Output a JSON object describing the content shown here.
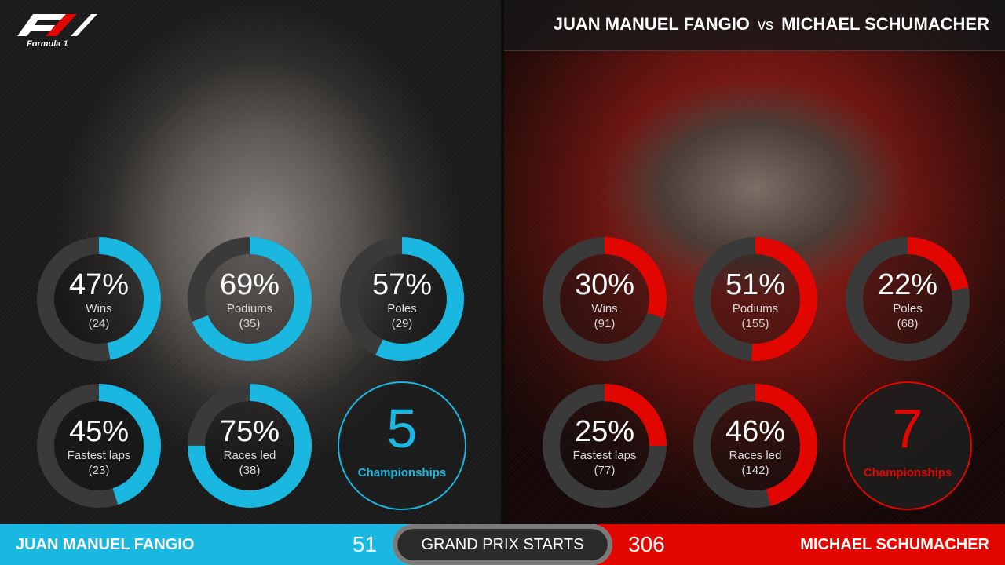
{
  "header": {
    "driver_left": "JUAN MANUEL FANGIO",
    "vs": "vs",
    "driver_right": "MICHAEL SCHUMACHER"
  },
  "logo": {
    "text": "Formula 1"
  },
  "colors": {
    "left_accent": "#1ab8e0",
    "right_accent": "#e10600",
    "track": "#3a3a3a"
  },
  "chart_data": [
    {
      "type": "donut",
      "driver": "JUAN MANUEL FANGIO",
      "accent": "#1ab8e0",
      "stats": [
        {
          "label": "Wins",
          "percent": 47,
          "percent_text": "47%",
          "count": "(24)"
        },
        {
          "label": "Podiums",
          "percent": 69,
          "percent_text": "69%",
          "count": "(35)"
        },
        {
          "label": "Poles",
          "percent": 57,
          "percent_text": "57%",
          "count": "(29)"
        },
        {
          "label": "Fastest laps",
          "percent": 45,
          "percent_text": "45%",
          "count": "(23)"
        },
        {
          "label": "Races led",
          "percent": 75,
          "percent_text": "75%",
          "count": "(38)"
        }
      ],
      "championships": {
        "value": "5",
        "label": "Championships"
      }
    },
    {
      "type": "donut",
      "driver": "MICHAEL SCHUMACHER",
      "accent": "#e10600",
      "stats": [
        {
          "label": "Wins",
          "percent": 30,
          "percent_text": "30%",
          "count": "(91)"
        },
        {
          "label": "Podiums",
          "percent": 51,
          "percent_text": "51%",
          "count": "(155)"
        },
        {
          "label": "Poles",
          "percent": 22,
          "percent_text": "22%",
          "count": "(68)"
        },
        {
          "label": "Fastest laps",
          "percent": 25,
          "percent_text": "25%",
          "count": "(77)"
        },
        {
          "label": "Races led",
          "percent": 46,
          "percent_text": "46%",
          "count": "(142)"
        }
      ],
      "championships": {
        "value": "7",
        "label": "Championships"
      }
    }
  ],
  "footer": {
    "left_name": "JUAN MANUEL FANGIO",
    "left_starts": "51",
    "center_label": "GRAND PRIX STARTS",
    "right_starts": "306",
    "right_name": "MICHAEL SCHUMACHER"
  }
}
